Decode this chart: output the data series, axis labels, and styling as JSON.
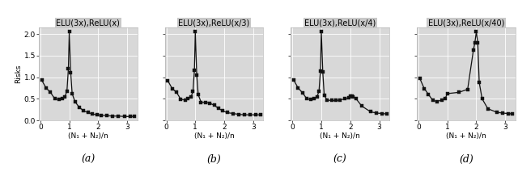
{
  "subplots": [
    {
      "title": "ELU(3x),ReLU(x)",
      "label": "(a)",
      "x": [
        0.05,
        0.2,
        0.35,
        0.5,
        0.65,
        0.75,
        0.85,
        0.92,
        0.97,
        1.0,
        1.05,
        1.1,
        1.2,
        1.35,
        1.5,
        1.65,
        1.8,
        1.95,
        2.1,
        2.3,
        2.5,
        2.7,
        2.9,
        3.1,
        3.25
      ],
      "y": [
        0.93,
        0.75,
        0.65,
        0.5,
        0.48,
        0.5,
        0.55,
        0.68,
        1.2,
        2.05,
        1.1,
        0.62,
        0.43,
        0.3,
        0.22,
        0.18,
        0.15,
        0.13,
        0.12,
        0.11,
        0.1,
        0.1,
        0.09,
        0.09,
        0.09
      ]
    },
    {
      "title": "ELU(3x),ReLU(x/3)",
      "label": "(b)",
      "x": [
        0.05,
        0.2,
        0.35,
        0.5,
        0.65,
        0.75,
        0.85,
        0.92,
        0.97,
        1.0,
        1.05,
        1.1,
        1.2,
        1.35,
        1.5,
        1.65,
        1.8,
        1.95,
        2.1,
        2.3,
        2.5,
        2.7,
        2.9,
        3.1,
        3.25
      ],
      "y": [
        0.92,
        0.74,
        0.65,
        0.49,
        0.47,
        0.5,
        0.54,
        0.67,
        1.17,
        2.05,
        1.05,
        0.6,
        0.42,
        0.42,
        0.4,
        0.35,
        0.28,
        0.22,
        0.18,
        0.16,
        0.14,
        0.13,
        0.13,
        0.13,
        0.13
      ]
    },
    {
      "title": "ELU(3x),ReLU(x/4)",
      "label": "(c)",
      "x": [
        0.05,
        0.2,
        0.35,
        0.5,
        0.65,
        0.75,
        0.85,
        0.92,
        0.97,
        1.0,
        1.05,
        1.1,
        1.2,
        1.35,
        1.5,
        1.65,
        1.8,
        1.95,
        2.0,
        2.05,
        2.1,
        2.2,
        2.4,
        2.7,
        2.9,
        3.1,
        3.25
      ],
      "y": [
        0.93,
        0.75,
        0.64,
        0.5,
        0.48,
        0.5,
        0.54,
        0.68,
        1.15,
        2.05,
        1.12,
        0.58,
        0.47,
        0.46,
        0.46,
        0.47,
        0.5,
        0.52,
        0.56,
        0.57,
        0.55,
        0.5,
        0.33,
        0.2,
        0.17,
        0.16,
        0.15
      ]
    },
    {
      "title": "ELU(3x),ReLU(x/40)",
      "label": "(d)",
      "x": [
        0.05,
        0.2,
        0.35,
        0.5,
        0.65,
        0.8,
        0.92,
        1.0,
        1.4,
        1.7,
        1.9,
        1.95,
        2.0,
        2.05,
        2.1,
        2.2,
        2.4,
        2.7,
        2.9,
        3.1,
        3.25
      ],
      "y": [
        0.97,
        0.74,
        0.6,
        0.46,
        0.44,
        0.47,
        0.5,
        0.62,
        0.65,
        0.72,
        1.63,
        1.8,
        2.05,
        1.8,
        0.88,
        0.5,
        0.27,
        0.19,
        0.17,
        0.16,
        0.15
      ]
    }
  ],
  "ylabel": "Risks",
  "xlabel": "(N₁ + N₂)/n",
  "ylim": [
    0,
    2.15
  ],
  "yticks": [
    0.0,
    0.5,
    1.0,
    1.5,
    2.0
  ],
  "xlim": [
    -0.05,
    3.35
  ],
  "xticks": [
    0,
    1,
    2,
    3
  ],
  "plot_bg_color": "#d8d8d8",
  "title_bg_color": "#c8c8c8",
  "line_color": "#111111",
  "marker": "s",
  "markersize": 2.8,
  "linewidth": 0.9,
  "title_fontsize": 7.0,
  "label_fontsize": 9,
  "tick_fontsize": 6.5,
  "axis_label_fontsize": 6.5,
  "ylabel_fontsize": 6.5
}
